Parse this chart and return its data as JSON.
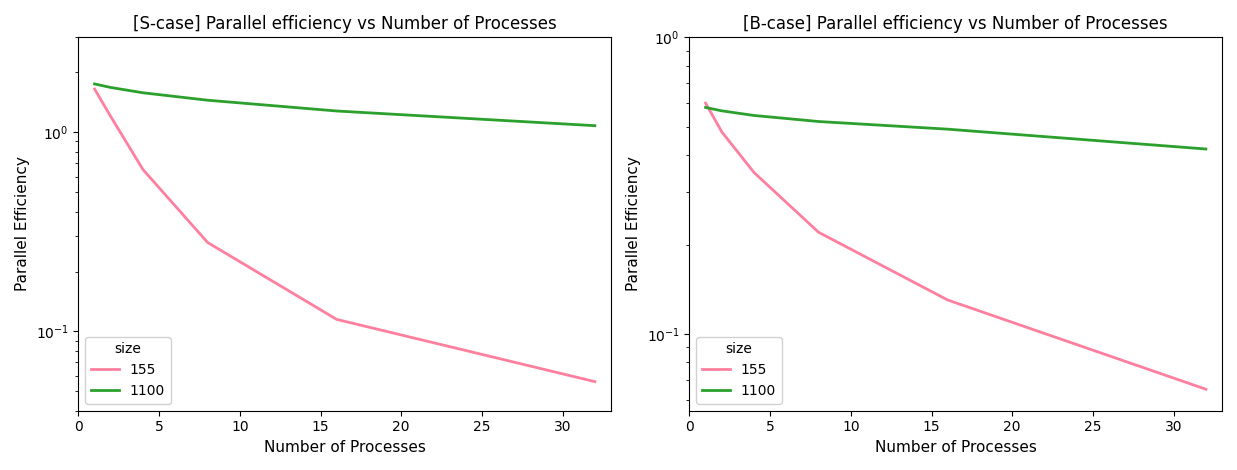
{
  "title_left": "[S-case] Parallel efficiency vs Number of Processes",
  "title_right": "[B-case] Parallel efficiency vs Number of Processes",
  "xlabel": "Number of Processes",
  "ylabel": "Parallel Efficiency",
  "legend_title": "size",
  "processes": [
    1,
    2,
    4,
    8,
    16,
    32
  ],
  "s_case": {
    "size155": [
      1.65,
      1.2,
      0.65,
      0.28,
      0.115,
      0.056
    ],
    "size1100": [
      1.75,
      1.68,
      1.58,
      1.45,
      1.28,
      1.08
    ]
  },
  "b_case": {
    "size155": [
      0.6,
      0.48,
      0.35,
      0.22,
      0.13,
      0.065
    ],
    "size1100": [
      0.58,
      0.565,
      0.545,
      0.52,
      0.49,
      0.42
    ]
  },
  "color_155": "#ff7f9e",
  "color_1100": "#2ca02c",
  "linewidth": 2.0,
  "figsize": [
    12.37,
    4.7
  ],
  "dpi": 100,
  "xlim": [
    0.5,
    33
  ],
  "xticks": [
    0,
    5,
    10,
    15,
    20,
    25,
    30
  ],
  "s_ylim": [
    0.04,
    3.0
  ],
  "b_ylim": [
    0.055,
    1.0
  ],
  "s_yticks": [
    1.0
  ],
  "b_yticks": [
    0.1
  ]
}
